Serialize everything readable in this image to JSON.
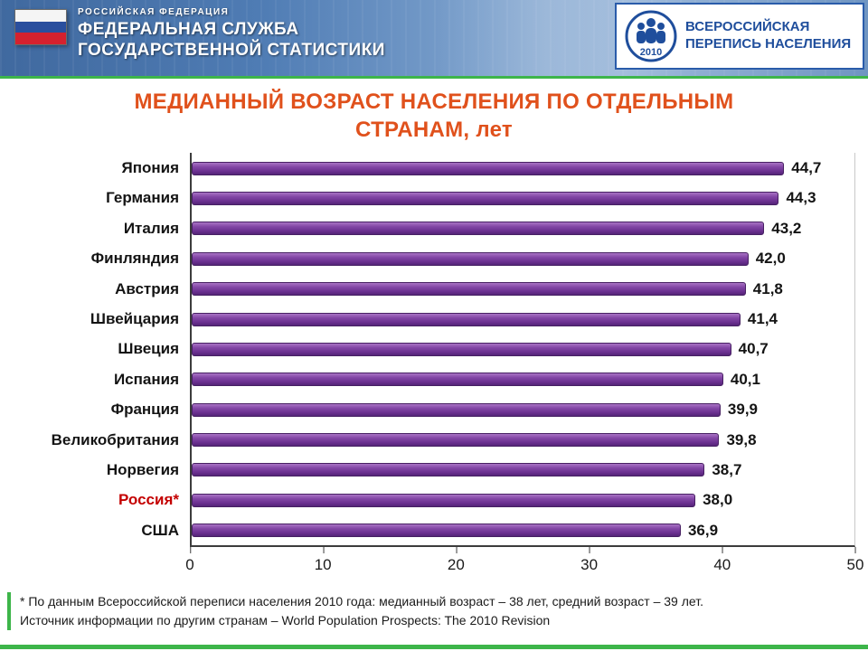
{
  "header": {
    "org_line1": "РОССИЙСКАЯ ФЕДЕРАЦИЯ",
    "org_line2": "ФЕДЕРАЛЬНАЯ СЛУЖБА",
    "org_line3": "ГОСУДАРСТВЕННОЙ СТАТИСТИКИ",
    "census": {
      "year": "2010",
      "line1": "ВСЕРОССИЙСКАЯ",
      "line2": "ПЕРЕПИСЬ НАСЕЛЕНИЯ"
    }
  },
  "title": {
    "line1": "МЕДИАННЫЙ ВОЗРАСТ НАСЕЛЕНИЯ ПО ОТДЕЛЬНЫМ",
    "line2": "СТРАНАМ, лет"
  },
  "chart_data": {
    "type": "bar",
    "orientation": "horizontal",
    "title": "МЕДИАННЫЙ ВОЗРАСТ НАСЕЛЕНИЯ ПО ОТДЕЛЬНЫМ СТРАНАМ, лет",
    "categories": [
      "Япония",
      "Германия",
      "Италия",
      "Финляндия",
      "Австрия",
      "Швейцария",
      "Швеция",
      "Испания",
      "Франция",
      "Великобритания",
      "Норвегия",
      "Россия*",
      "США"
    ],
    "values": [
      44.7,
      44.3,
      43.2,
      42.0,
      41.8,
      41.4,
      40.7,
      40.1,
      39.9,
      39.8,
      38.7,
      38.0,
      36.9
    ],
    "value_labels": [
      "44,7",
      "44,3",
      "43,2",
      "42,0",
      "41,8",
      "41,4",
      "40,7",
      "40,1",
      "39,9",
      "39,8",
      "38,7",
      "38,0",
      "36,9"
    ],
    "highlight_category": "Россия*",
    "x_ticks": [
      "0",
      "10",
      "20",
      "30",
      "40",
      "50"
    ],
    "xlim": [
      0,
      50
    ],
    "grid": false,
    "legend": false,
    "bar_color": "#7b3f9b"
  },
  "footnotes": {
    "line1": "* По данным Всероссийской переписи населения 2010 года: медианный возраст – 38 лет, средний возраст – 39 лет.",
    "line2": "Источник информации по другим странам – World Population Prospects: The 2010 Revision"
  },
  "colors": {
    "title": "#e0511c",
    "bar": "#7b3f9b",
    "accent_green": "#3db54a",
    "highlight_label": "#c40000",
    "header_blue": "#4f7cb4",
    "census_blue": "#1f4e9c"
  }
}
